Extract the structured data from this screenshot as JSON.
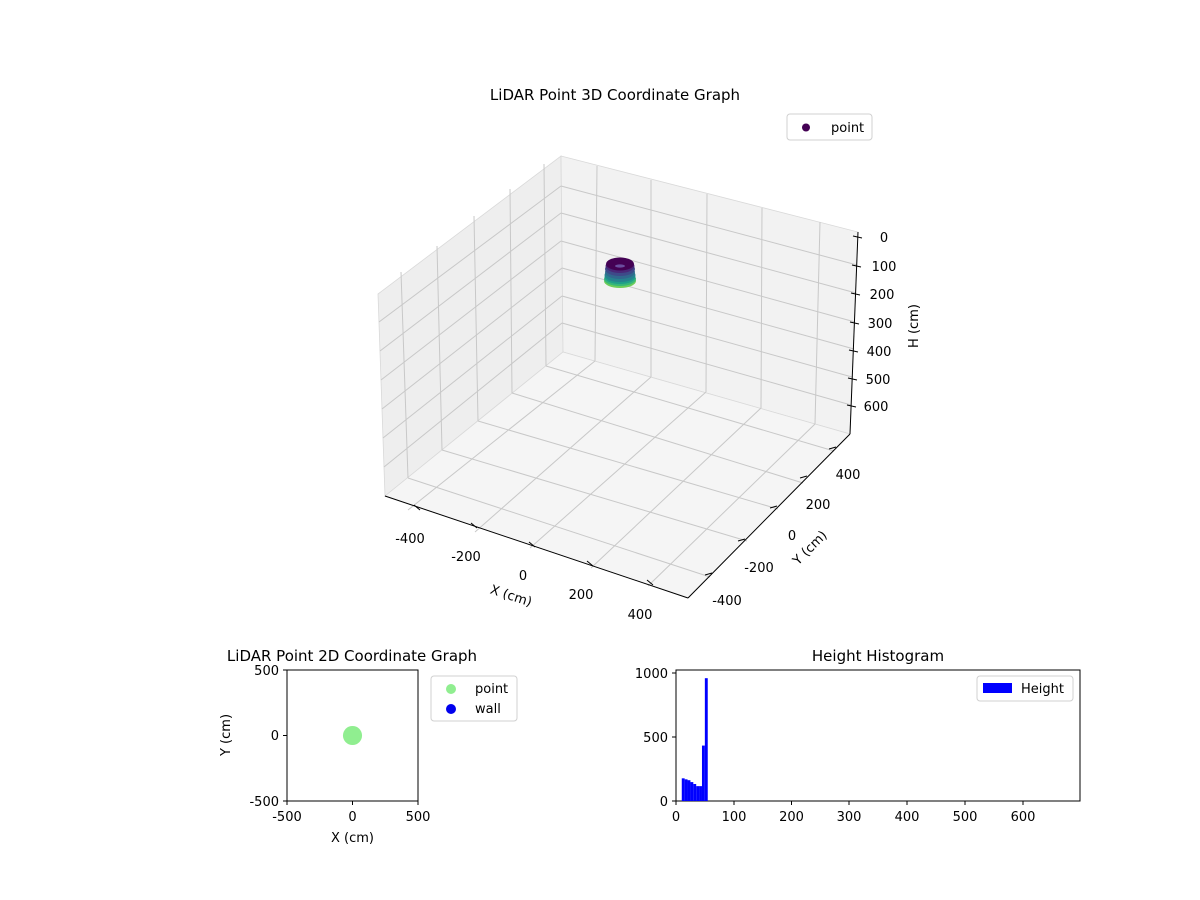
{
  "chart_data": [
    {
      "type": "scatter3d",
      "title": "LiDAR Point 3D Coordinate Graph",
      "xlabel": "X (cm)",
      "ylabel": "Y (cm)",
      "zlabel": "H (cm)",
      "xlim": [
        -500,
        500
      ],
      "ylim": [
        -500,
        500
      ],
      "zlim": [
        0,
        700
      ],
      "z_inverted": true,
      "xticks": [
        -400,
        -200,
        0,
        200,
        400
      ],
      "yticks": [
        -400,
        -200,
        0,
        200,
        400
      ],
      "zticks": [
        0,
        100,
        200,
        300,
        400,
        500,
        600
      ],
      "grid": true,
      "legend": {
        "position": "upper-right",
        "entries": [
          "point"
        ]
      },
      "series": [
        {
          "name": "point",
          "colormap": "viridis",
          "center": [
            0,
            0
          ],
          "radius": 50,
          "h_range": [
            10,
            60
          ]
        }
      ]
    },
    {
      "type": "scatter",
      "title": "LiDAR Point 2D Coordinate Graph",
      "xlabel": "X (cm)",
      "ylabel": "Y (cm)",
      "xlim": [
        -500,
        500
      ],
      "ylim": [
        -500,
        500
      ],
      "xticks": [
        -500,
        0,
        500
      ],
      "yticks": [
        -500,
        0,
        500
      ],
      "legend": {
        "position": "outside-right",
        "entries": [
          "point",
          "wall"
        ]
      },
      "series": [
        {
          "name": "point",
          "color": "#90ee90",
          "center": [
            0,
            0
          ],
          "radius": 50
        },
        {
          "name": "wall",
          "color": "#0000ee",
          "points": []
        }
      ]
    },
    {
      "type": "bar",
      "title": "Height Histogram",
      "xlabel": "",
      "ylabel": "",
      "xlim": [
        0,
        700
      ],
      "ylim": [
        0,
        1040
      ],
      "xticks": [
        0,
        100,
        200,
        300,
        400,
        500,
        600
      ],
      "yticks": [
        0,
        500,
        1000
      ],
      "legend": {
        "position": "upper-right",
        "entries": [
          "Height"
        ]
      },
      "series": [
        {
          "name": "Height",
          "color": "#0000ff",
          "bin_width": 5,
          "bins": [
            {
              "x": 10,
              "value": 180
            },
            {
              "x": 15,
              "value": 172
            },
            {
              "x": 20,
              "value": 165
            },
            {
              "x": 25,
              "value": 150
            },
            {
              "x": 30,
              "value": 135
            },
            {
              "x": 35,
              "value": 118
            },
            {
              "x": 40,
              "value": 118
            },
            {
              "x": 45,
              "value": 440
            },
            {
              "x": 50,
              "value": 975
            }
          ]
        }
      ]
    }
  ]
}
